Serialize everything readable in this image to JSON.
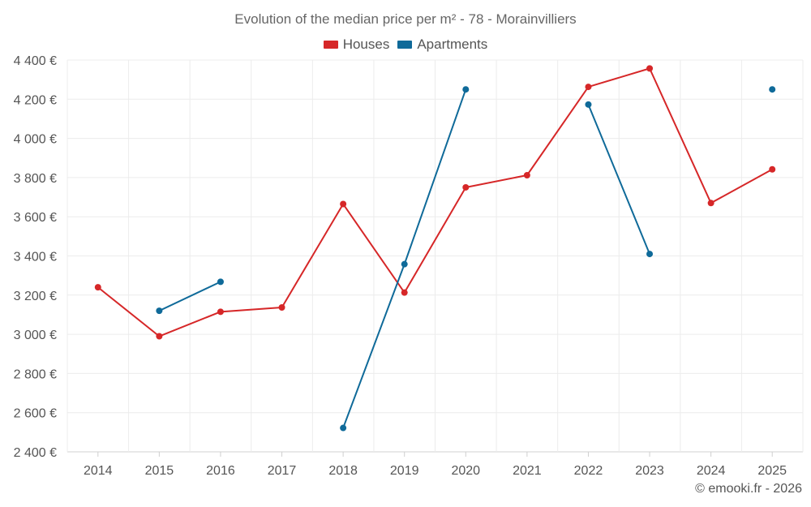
{
  "chart_data": {
    "type": "line",
    "title": "Evolution of the median price per m² - 78 - Morainvilliers",
    "categories": [
      "2014",
      "2015",
      "2016",
      "2017",
      "2018",
      "2019",
      "2020",
      "2021",
      "2022",
      "2023",
      "2024",
      "2025"
    ],
    "ylim": [
      2400,
      4400
    ],
    "yticks": [
      2400,
      2600,
      2800,
      3000,
      3200,
      3400,
      3600,
      3800,
      4000,
      4200,
      4400
    ],
    "ytick_labels": [
      "2 400 €",
      "2 600 €",
      "2 800 €",
      "3 000 €",
      "3 200 €",
      "3 400 €",
      "3 600 €",
      "3 800 €",
      "4 000 €",
      "4 200 €",
      "4 400 €"
    ],
    "xlabel": "",
    "ylabel": "",
    "grid": true,
    "legend_position": "top-center",
    "series": [
      {
        "name": "Houses",
        "color": "#d62728",
        "values": [
          3240,
          2990,
          3115,
          3137,
          3665,
          3213,
          3750,
          3812,
          4263,
          4357,
          3670,
          3842
        ]
      },
      {
        "name": "Apartments",
        "color": "#0f6a99",
        "values": [
          null,
          3120,
          3268,
          null,
          2522,
          3358,
          4250,
          null,
          4173,
          3410,
          null,
          4250
        ]
      }
    ]
  },
  "footer": {
    "copyright": "© emooki.fr - 2026"
  }
}
